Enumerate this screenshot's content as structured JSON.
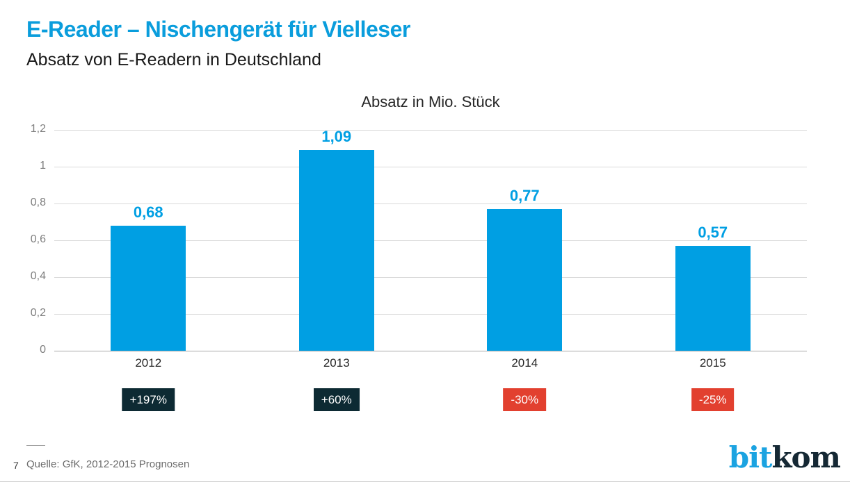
{
  "header": {
    "title": "E-Reader – Nischengerät für Vielleser",
    "subtitle": "Absatz von E-Readern in Deutschland"
  },
  "chart": {
    "title": "Absatz in Mio. Stück"
  },
  "chart_data": {
    "type": "bar",
    "title": "Absatz in Mio. Stück",
    "categories": [
      "2012",
      "2013",
      "2014",
      "2015"
    ],
    "values": [
      0.68,
      1.09,
      0.77,
      0.57
    ],
    "value_labels": [
      "0,68",
      "1,09",
      "0,77",
      "0,57"
    ],
    "change_badges": [
      {
        "label": "+197%",
        "color": "#0d2a33"
      },
      {
        "label": "+60%",
        "color": "#0d2a33"
      },
      {
        "label": "-30%",
        "color": "#e2402f"
      },
      {
        "label": "-25%",
        "color": "#e2402f"
      }
    ],
    "y_ticks": [
      {
        "value": 1.2,
        "label": "1,2"
      },
      {
        "value": 1.0,
        "label": "1"
      },
      {
        "value": 0.8,
        "label": "0,8"
      },
      {
        "value": 0.6,
        "label": "0,6"
      },
      {
        "value": 0.4,
        "label": "0,4"
      },
      {
        "value": 0.2,
        "label": "0,2"
      },
      {
        "value": 0,
        "label": "0"
      }
    ],
    "ylim": [
      0,
      1.2
    ],
    "xlabel": "",
    "ylabel": "",
    "grid": true,
    "legend": false,
    "bar_color": "#009fe3",
    "value_label_color": "#009fe3"
  },
  "footer": {
    "page_number": "7",
    "source": "Quelle: GfK, 2012-2015 Prognosen",
    "logo": {
      "part1": "bit",
      "part2": "kom"
    }
  }
}
